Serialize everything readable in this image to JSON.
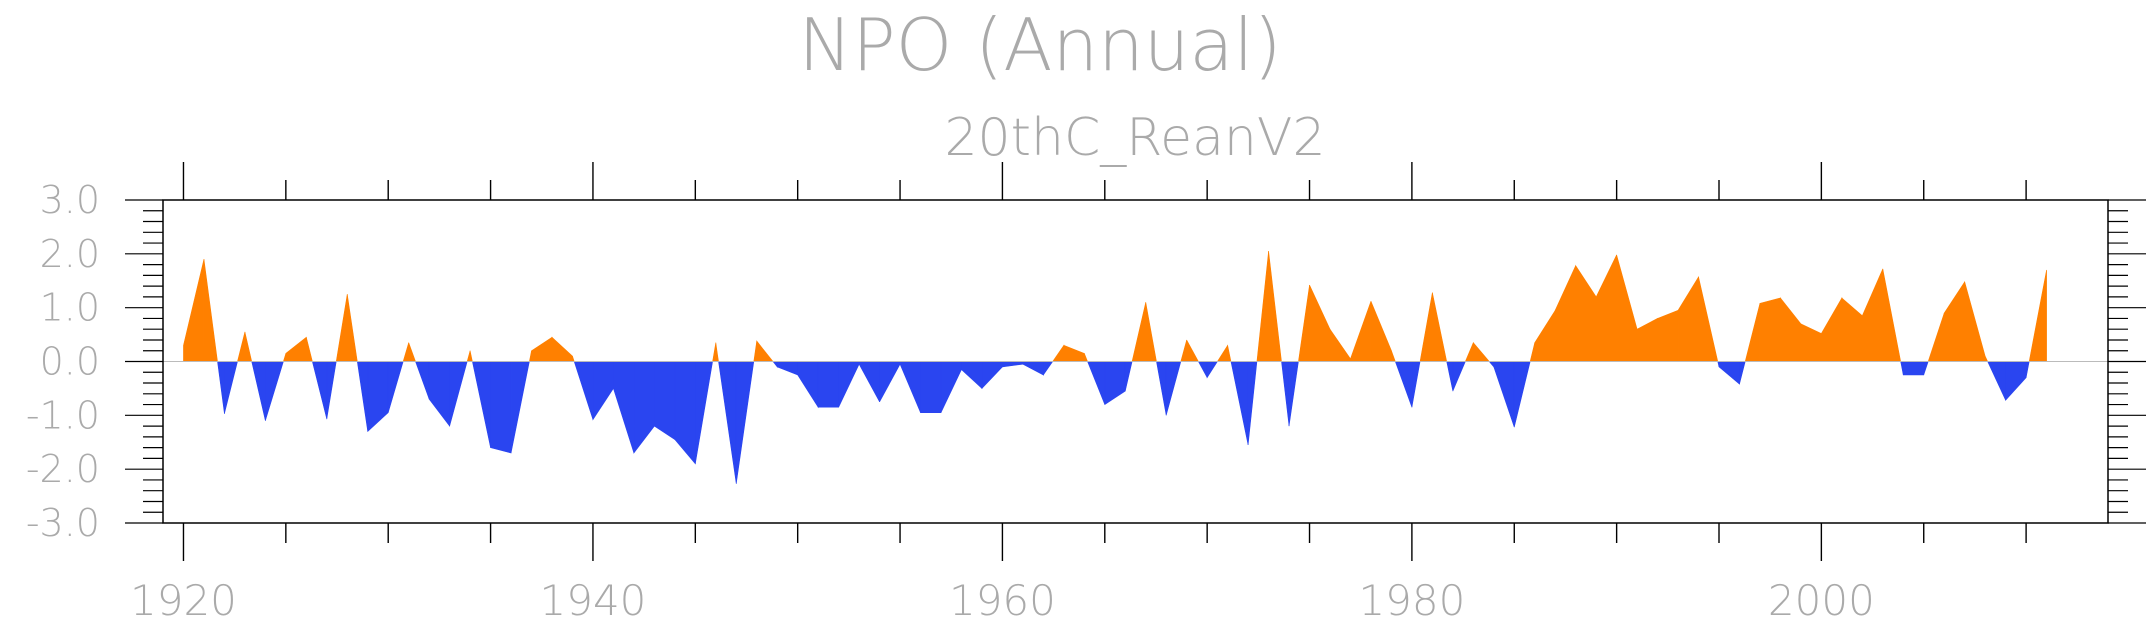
{
  "chart_data": {
    "type": "area",
    "title": "NPO (Annual)",
    "subtitle": "20thC_ReanV2",
    "xlabel": "",
    "ylabel": "",
    "xlim": [
      1919,
      2014
    ],
    "ylim": [
      -3.0,
      3.0
    ],
    "x_ticks": [
      1920,
      1940,
      1960,
      1980,
      2000
    ],
    "x_tick_labels": [
      "1920",
      "1940",
      "1960",
      "1980",
      "2000"
    ],
    "y_ticks": [
      3.0,
      2.0,
      1.0,
      0.0,
      -1.0,
      -2.0,
      -3.0
    ],
    "y_tick_labels": [
      "3.0",
      "2.0",
      "1.0",
      "0.0",
      "-1.0",
      "-2.0",
      "-3.0"
    ],
    "grid": false,
    "positive_color": "#ff8000",
    "negative_color": "#2a45f0",
    "axis_color": "#000000",
    "text_color": "#aaaaaa",
    "series": [
      {
        "x": [
          1920,
          1921,
          1922,
          1923,
          1924,
          1925,
          1926,
          1927,
          1928,
          1929,
          1930,
          1931,
          1932,
          1933,
          1934,
          1935,
          1936,
          1937,
          1938,
          1939,
          1940,
          1941,
          1942,
          1943,
          1944,
          1945,
          1946,
          1947,
          1948,
          1949,
          1950,
          1951,
          1952,
          1953,
          1954,
          1955,
          1956,
          1957,
          1958,
          1959,
          1960,
          1961,
          1962,
          1963,
          1964,
          1965,
          1966,
          1967,
          1968,
          1969,
          1970,
          1971,
          1972,
          1973,
          1974,
          1975,
          1976,
          1977,
          1978,
          1979,
          1980,
          1981,
          1982,
          1983,
          1984,
          1985,
          1986,
          1987,
          1988,
          1989,
          1990,
          1991,
          1992,
          1993,
          1994,
          1995,
          1996,
          1997,
          1998,
          1999,
          2000,
          2001,
          2002,
          2003,
          2004,
          2005,
          2006,
          2007,
          2008,
          2009,
          2010,
          2011
        ],
        "values": [
          0.3,
          1.9,
          -0.97,
          0.55,
          -1.1,
          0.15,
          0.45,
          -1.07,
          1.25,
          -1.3,
          -0.95,
          0.35,
          -0.7,
          -1.2,
          0.2,
          -1.6,
          -1.7,
          0.2,
          0.45,
          0.1,
          -1.08,
          -0.5,
          -1.7,
          -1.2,
          -1.45,
          -1.9,
          0.35,
          -2.27,
          0.38,
          -0.1,
          -0.25,
          -0.85,
          -0.85,
          -0.05,
          -0.75,
          -0.05,
          -0.95,
          -0.95,
          -0.15,
          -0.5,
          -0.1,
          -0.05,
          -0.25,
          0.3,
          0.15,
          -0.8,
          -0.55,
          1.1,
          -1.0,
          0.4,
          -0.3,
          0.3,
          -1.55,
          2.05,
          -1.2,
          1.42,
          0.6,
          0.05,
          1.12,
          0.2,
          -0.85,
          1.28,
          -0.55,
          0.35,
          -0.1,
          -1.22,
          0.35,
          0.95,
          1.78,
          1.2,
          1.98,
          0.6,
          0.8,
          0.95,
          1.57,
          -0.1,
          -0.42,
          1.08,
          1.18,
          0.7,
          0.52,
          1.18,
          0.85,
          1.72,
          -0.25,
          -0.25,
          0.9,
          1.48,
          0.1,
          -0.72,
          -0.3,
          1.7
        ]
      }
    ]
  }
}
